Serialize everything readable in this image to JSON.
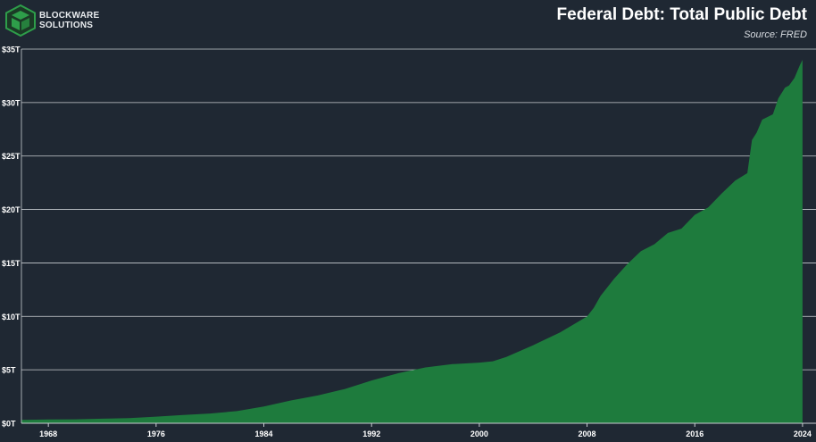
{
  "brand": {
    "line1": "BLOCKWARE",
    "line2": "SOLUTIONS",
    "accent_color": "#2e9e4a"
  },
  "chart_data": {
    "type": "area",
    "title": "Federal Debt: Total Public Debt",
    "subtitle": "Source: FRED",
    "xlabel": "",
    "ylabel": "",
    "x_range": [
      1966,
      2025
    ],
    "ylim": [
      0,
      35
    ],
    "grid": true,
    "legend": "none",
    "fill_color": "#1e7b3d",
    "x_ticks": [
      {
        "value": 1968,
        "label": "1968"
      },
      {
        "value": 1976,
        "label": "1976"
      },
      {
        "value": 1984,
        "label": "1984"
      },
      {
        "value": 1992,
        "label": "1992"
      },
      {
        "value": 2000,
        "label": "2000"
      },
      {
        "value": 2008,
        "label": "2008"
      },
      {
        "value": 2016,
        "label": "2016"
      },
      {
        "value": 2024,
        "label": "2024"
      }
    ],
    "y_ticks": [
      {
        "value": 0,
        "label": "$0T"
      },
      {
        "value": 5,
        "label": "$5T"
      },
      {
        "value": 10,
        "label": "$10T"
      },
      {
        "value": 15,
        "label": "$15T"
      },
      {
        "value": 20,
        "label": "$20T"
      },
      {
        "value": 25,
        "label": "$25T"
      },
      {
        "value": 30,
        "label": "$30T"
      },
      {
        "value": 35,
        "label": "$35T"
      }
    ],
    "series": [
      {
        "name": "Federal Debt: Total Public Debt (Trillions USD)",
        "x": [
          1966,
          1968,
          1970,
          1972,
          1974,
          1976,
          1978,
          1980,
          1982,
          1984,
          1986,
          1988,
          1990,
          1992,
          1994,
          1996,
          1998,
          2000,
          2001,
          2002,
          2004,
          2006,
          2008,
          2008.5,
          2009,
          2010,
          2011,
          2012,
          2013,
          2014,
          2015,
          2016,
          2017,
          2018,
          2019,
          2019.9,
          2020.25,
          2020.6,
          2021,
          2021.8,
          2022.2,
          2022.7,
          2023,
          2023.4,
          2023.8,
          2024
        ],
        "values": [
          0.32,
          0.35,
          0.37,
          0.43,
          0.48,
          0.62,
          0.77,
          0.91,
          1.14,
          1.57,
          2.13,
          2.6,
          3.2,
          4.0,
          4.69,
          5.22,
          5.53,
          5.67,
          5.8,
          6.2,
          7.3,
          8.5,
          9.99,
          10.8,
          11.9,
          13.5,
          14.9,
          16.1,
          16.75,
          17.8,
          18.2,
          19.5,
          20.2,
          21.5,
          22.7,
          23.4,
          26.5,
          27.2,
          28.4,
          28.9,
          30.4,
          31.4,
          31.6,
          32.3,
          33.5,
          34.0
        ]
      }
    ]
  }
}
